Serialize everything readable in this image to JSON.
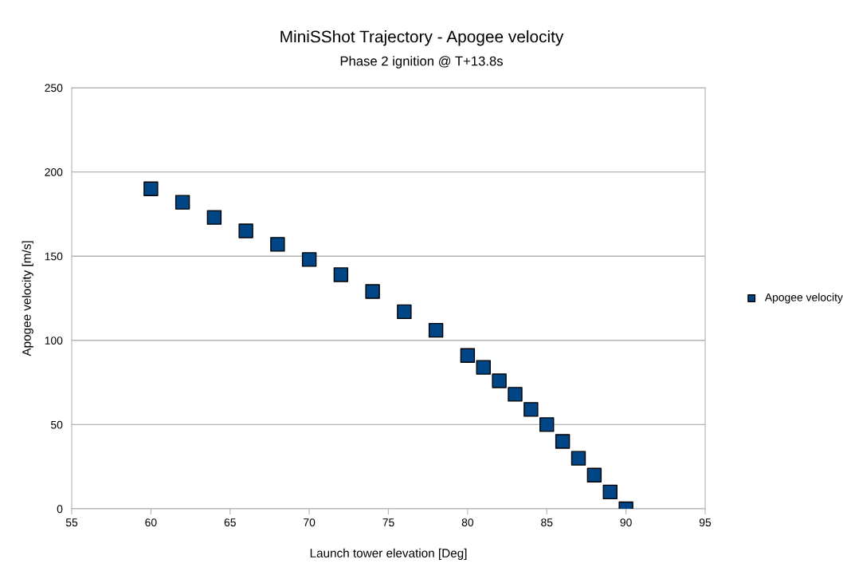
{
  "chart_data": {
    "type": "scatter",
    "title": "MiniSShot Trajectory - Apogee velocity",
    "subtitle": "Phase 2 ignition @ T+13.8s",
    "xlabel": "Launch tower elevation [Deg]",
    "ylabel": "Apogee velocity [m/s]",
    "x": [
      60,
      62,
      64,
      66,
      68,
      70,
      72,
      74,
      76,
      78,
      80,
      81,
      82,
      83,
      84,
      85,
      86,
      87,
      88,
      89,
      90
    ],
    "series": [
      {
        "name": "Apogee velocity",
        "color": "#004586",
        "values": [
          190,
          182,
          173,
          165,
          157,
          148,
          139,
          129,
          117,
          106,
          91,
          84,
          76,
          68,
          59,
          50,
          40,
          30,
          20,
          10,
          0
        ]
      }
    ],
    "xlim": [
      55,
      95
    ],
    "xticks": [
      55,
      60,
      65,
      70,
      75,
      80,
      85,
      90,
      95
    ],
    "ylim": [
      0,
      250
    ],
    "yticks": [
      0,
      50,
      100,
      150,
      200,
      250
    ],
    "grid": "y",
    "legend": "right",
    "marker": "square"
  }
}
